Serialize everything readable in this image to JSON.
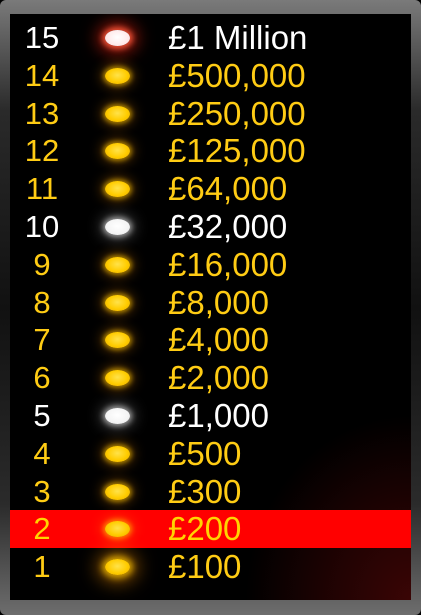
{
  "ladder": {
    "current_level": 2,
    "rungs": [
      {
        "level": "15",
        "amount": "£1 Million",
        "safe_haven": true,
        "dot": "red-glow"
      },
      {
        "level": "14",
        "amount": "£500,000",
        "safe_haven": false,
        "dot": "gold"
      },
      {
        "level": "13",
        "amount": "£250,000",
        "safe_haven": false,
        "dot": "gold"
      },
      {
        "level": "12",
        "amount": "£125,000",
        "safe_haven": false,
        "dot": "gold"
      },
      {
        "level": "11",
        "amount": "£64,000",
        "safe_haven": false,
        "dot": "gold"
      },
      {
        "level": "10",
        "amount": "£32,000",
        "safe_haven": true,
        "dot": "white"
      },
      {
        "level": "9",
        "amount": "£16,000",
        "safe_haven": false,
        "dot": "gold"
      },
      {
        "level": "8",
        "amount": "£8,000",
        "safe_haven": false,
        "dot": "gold"
      },
      {
        "level": "7",
        "amount": "£4,000",
        "safe_haven": false,
        "dot": "gold"
      },
      {
        "level": "6",
        "amount": "£2,000",
        "safe_haven": false,
        "dot": "gold"
      },
      {
        "level": "5",
        "amount": "£1,000",
        "safe_haven": true,
        "dot": "white"
      },
      {
        "level": "4",
        "amount": "£500",
        "safe_haven": false,
        "dot": "gold"
      },
      {
        "level": "3",
        "amount": "£300",
        "safe_haven": false,
        "dot": "gold"
      },
      {
        "level": "2",
        "amount": "£200",
        "safe_haven": false,
        "dot": "gold"
      },
      {
        "level": "1",
        "amount": "£100",
        "safe_haven": false,
        "dot": "gold"
      }
    ]
  },
  "colors": {
    "highlight": "#ff0000",
    "gold_text": "#ffcc14",
    "white_text": "#ffffff",
    "background": "#000000"
  }
}
